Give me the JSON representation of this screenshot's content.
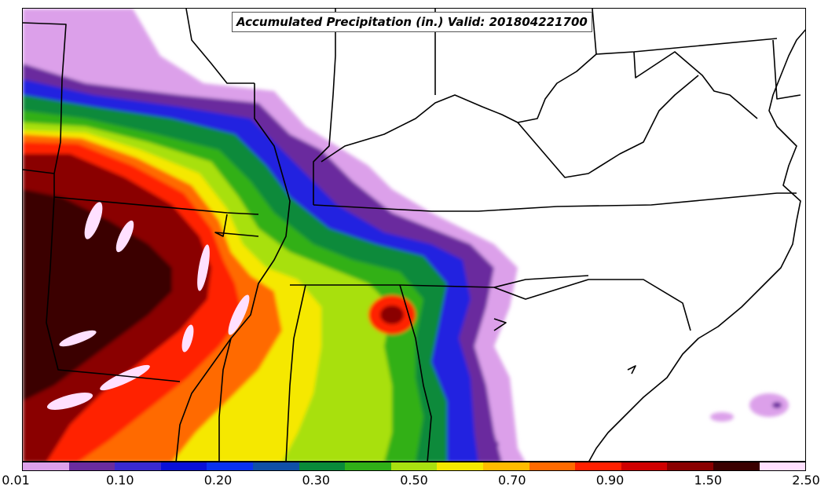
{
  "title": "Accumulated Precipitation (in.) Valid: 201804221700",
  "colorbar": {
    "colors": [
      "#dca0ea",
      "#6a2c9e",
      "#3a2ad0",
      "#0a10d8",
      "#0a32f0",
      "#1050a8",
      "#0a8a3a",
      "#30b018",
      "#a8e010",
      "#f5e800",
      "#ffbb00",
      "#ff6a00",
      "#ff2000",
      "#d00000",
      "#8a0000",
      "#3a0000",
      "#ffe0ff"
    ],
    "tick_labels": [
      {
        "label": "0.01",
        "index": 0
      },
      {
        "label": "0.10",
        "index": 2
      },
      {
        "label": "0.20",
        "index": 4
      },
      {
        "label": "0.30",
        "index": 6
      },
      {
        "label": "0.50",
        "index": 8
      },
      {
        "label": "0.70",
        "index": 10
      },
      {
        "label": "0.90",
        "index": 12
      },
      {
        "label": "1.50",
        "index": 14
      },
      {
        "label": "2.50",
        "index": 16
      }
    ]
  }
}
